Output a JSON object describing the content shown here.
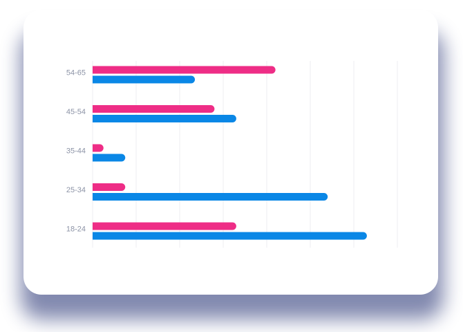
{
  "chart_data": {
    "type": "bar",
    "orientation": "horizontal",
    "categories": [
      "18-24",
      "25-34",
      "35-44",
      "45-54",
      "54-65"
    ],
    "series": [
      {
        "values": [
          33,
          7.5,
          2.5,
          28,
          42
        ],
        "color": "#ee2d86"
      },
      {
        "values": [
          63,
          54,
          7.5,
          33,
          23.5
        ],
        "color": "#0a87e6"
      }
    ],
    "xlim": [
      0,
      70
    ],
    "grid": true,
    "legend": "none",
    "title": "",
    "xlabel": "",
    "ylabel": ""
  },
  "colors": {
    "card": "#ffffff",
    "shadow": "#1d2a6e",
    "grid": "#eceef2",
    "tick_label": "#8c93a6"
  }
}
